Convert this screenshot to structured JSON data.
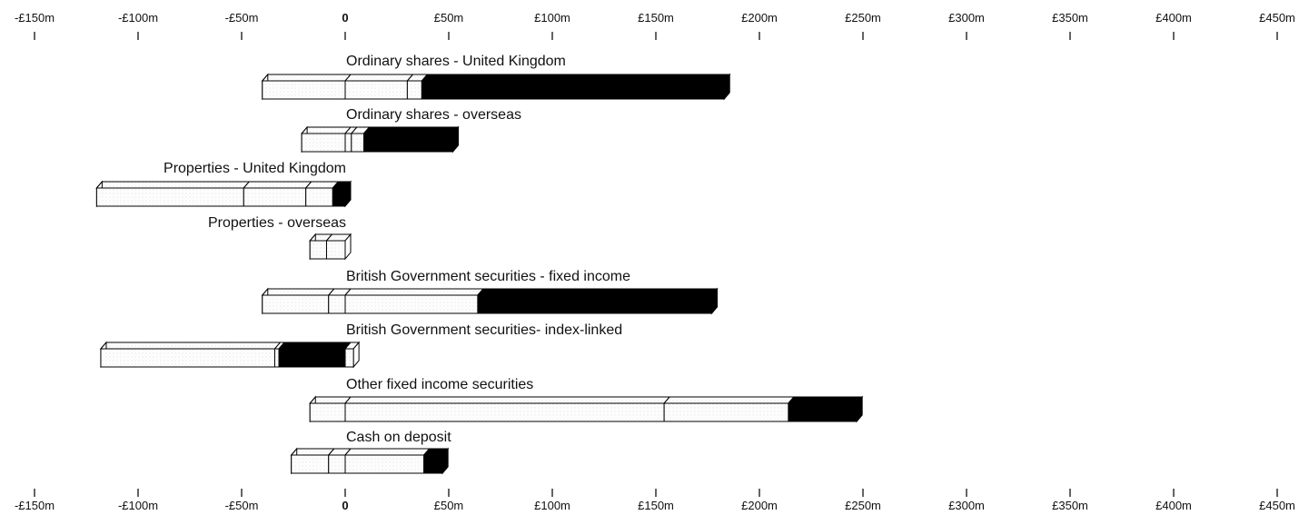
{
  "chart_data": {
    "type": "bar",
    "orientation": "horizontal",
    "x_ticks": [
      "-£150m",
      "-£100m",
      "-£50m",
      "0",
      "£50m",
      "£100m",
      "£150m",
      "£200m",
      "£250m",
      "£300m",
      "£350m",
      "£400m",
      "£450m"
    ],
    "x_tick_values": [
      -150,
      -100,
      -50,
      0,
      50,
      100,
      150,
      200,
      250,
      300,
      350,
      400,
      450
    ],
    "xlim": [
      -150,
      450
    ],
    "unit": "£m",
    "grid": false,
    "legend": "none",
    "colors": {
      "light": "#ffffff",
      "light_stipple": "#ececec",
      "dark": "#000000",
      "outline": "#000000"
    },
    "categories": [
      {
        "label": "Ordinary shares - United Kingdom",
        "segments": [
          {
            "from": -40,
            "to": 0,
            "fill": "light"
          },
          {
            "from": 0,
            "to": 30,
            "fill": "light"
          },
          {
            "from": 30,
            "to": 37,
            "fill": "light"
          },
          {
            "from": 37,
            "to": 183,
            "fill": "dark"
          }
        ]
      },
      {
        "label": "Ordinary shares - overseas",
        "segments": [
          {
            "from": -21,
            "to": 0,
            "fill": "light"
          },
          {
            "from": 0,
            "to": 3,
            "fill": "light"
          },
          {
            "from": 3,
            "to": 9,
            "fill": "light"
          },
          {
            "from": 9,
            "to": 52,
            "fill": "dark"
          }
        ]
      },
      {
        "label": "Properties - United Kingdom",
        "segments": [
          {
            "from": -120,
            "to": -49,
            "fill": "light"
          },
          {
            "from": -49,
            "to": -19,
            "fill": "light"
          },
          {
            "from": -19,
            "to": -6,
            "fill": "light"
          },
          {
            "from": -6,
            "to": 0,
            "fill": "dark"
          }
        ]
      },
      {
        "label": "Properties - overseas",
        "segments": [
          {
            "from": -17,
            "to": -9,
            "fill": "light"
          },
          {
            "from": -9,
            "to": 0,
            "fill": "light"
          }
        ]
      },
      {
        "label": "British Government securities - fixed income",
        "segments": [
          {
            "from": -40,
            "to": -8,
            "fill": "light"
          },
          {
            "from": -8,
            "to": 0,
            "fill": "light"
          },
          {
            "from": 0,
            "to": 64,
            "fill": "light"
          },
          {
            "from": 64,
            "to": 177,
            "fill": "dark"
          }
        ]
      },
      {
        "label": "British Government securities- index-linked",
        "segments": [
          {
            "from": -118,
            "to": -34,
            "fill": "light"
          },
          {
            "from": -34,
            "to": -32,
            "fill": "light"
          },
          {
            "from": -32,
            "to": 0,
            "fill": "dark"
          },
          {
            "from": 0,
            "to": 4,
            "fill": "light"
          }
        ]
      },
      {
        "label": "Other fixed income securities",
        "segments": [
          {
            "from": -17,
            "to": 0,
            "fill": "light"
          },
          {
            "from": 0,
            "to": 154,
            "fill": "light"
          },
          {
            "from": 154,
            "to": 214,
            "fill": "light"
          },
          {
            "from": 214,
            "to": 247,
            "fill": "dark"
          }
        ]
      },
      {
        "label": "Cash on deposit",
        "segments": [
          {
            "from": -26,
            "to": -8,
            "fill": "light"
          },
          {
            "from": -8,
            "to": 0,
            "fill": "light"
          },
          {
            "from": 0,
            "to": 38,
            "fill": "light"
          },
          {
            "from": 38,
            "to": 47,
            "fill": "dark"
          }
        ]
      }
    ]
  }
}
